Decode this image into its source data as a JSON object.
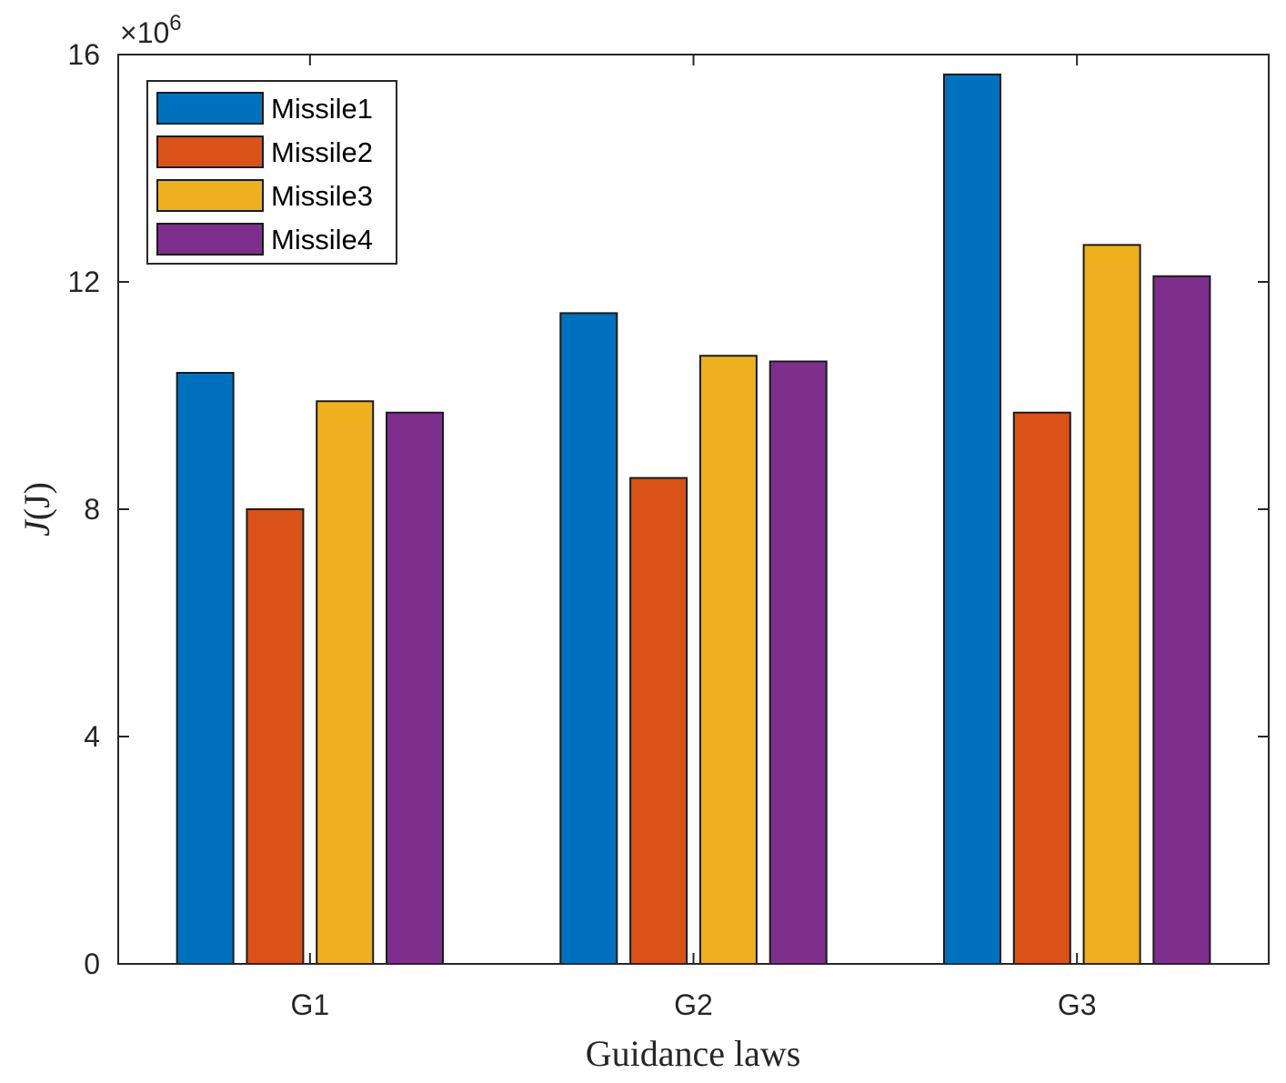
{
  "chart_data": {
    "type": "bar",
    "title": "",
    "xlabel": "Guidance laws",
    "ylabel_main": "J",
    "ylabel_unit": "(J)",
    "y_multiplier_base": "×10",
    "y_multiplier_exp": "6",
    "categories": [
      "G1",
      "G2",
      "G3"
    ],
    "ylim": [
      0,
      16
    ],
    "yticks": [
      0,
      4,
      8,
      12,
      16
    ],
    "grid": false,
    "legend_position": "top-left",
    "series": [
      {
        "name": "Missile1",
        "color": "#0072BD",
        "values": [
          10.4,
          11.45,
          15.65
        ]
      },
      {
        "name": "Missile2",
        "color": "#D95319",
        "values": [
          8.0,
          8.55,
          9.7
        ]
      },
      {
        "name": "Missile3",
        "color": "#EDB120",
        "values": [
          9.9,
          10.7,
          12.65
        ]
      },
      {
        "name": "Missile4",
        "color": "#7E2F8E",
        "values": [
          9.7,
          10.6,
          12.1
        ]
      }
    ]
  }
}
